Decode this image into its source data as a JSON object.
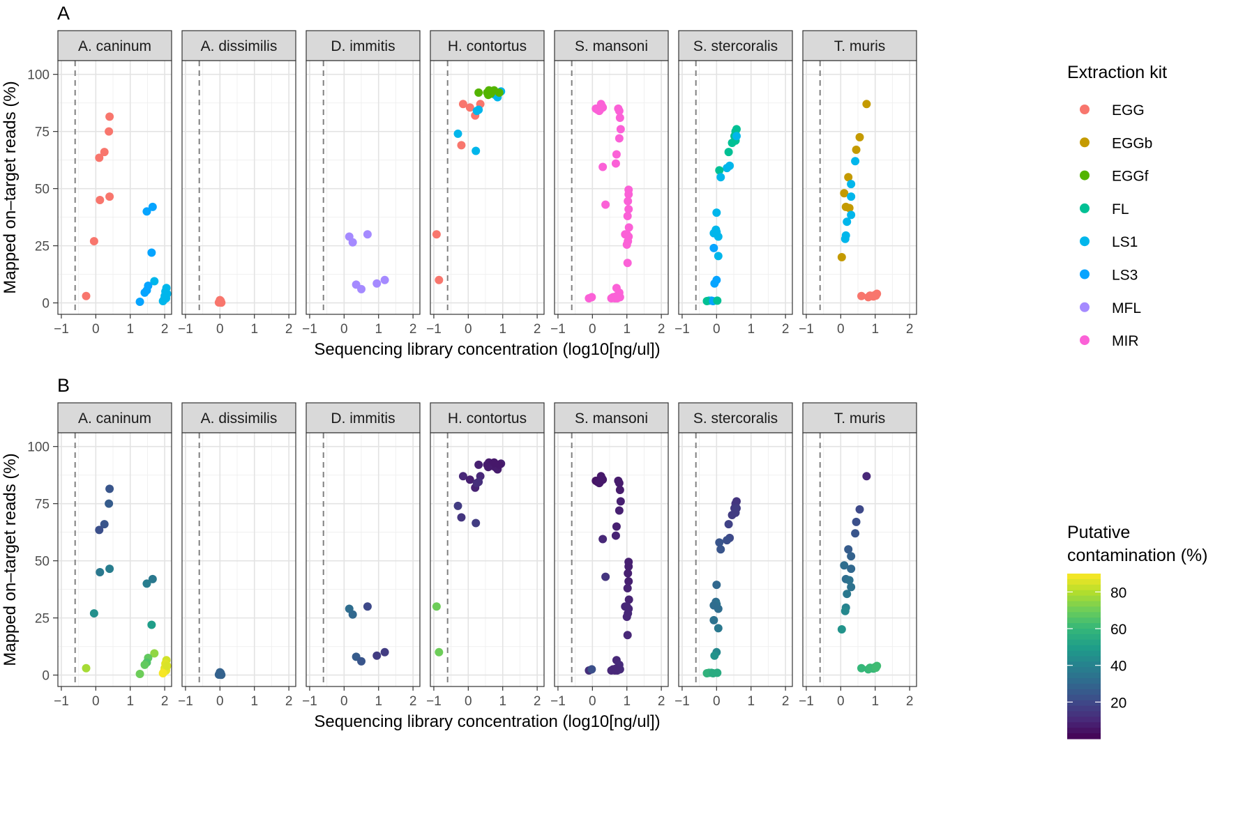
{
  "chart_data": [
    {
      "panel_label": "A",
      "type": "scatter",
      "facets": [
        "A. caninum",
        "A. dissimilis",
        "D. immitis",
        "H. contortus",
        "S. mansoni",
        "S. stercoralis",
        "T. muris"
      ],
      "xlabel": "Sequencing library concentration (log10[ng/ul])",
      "ylabel": "Mapped on–target reads (%)",
      "xlim": [
        -1.1,
        2.2
      ],
      "ylim": [
        -5,
        106
      ],
      "x_ticks": [
        -1,
        0,
        1,
        2
      ],
      "y_ticks": [
        0,
        25,
        50,
        75,
        100
      ],
      "x_tick_labels": [
        "−1",
        "0",
        "1",
        "2"
      ],
      "y_tick_labels": [
        "0",
        "25",
        "50",
        "75",
        "100"
      ],
      "threshold_x": -0.6,
      "color_by": "Extraction kit",
      "legend": {
        "title": "Extraction kit",
        "position": "right",
        "items": [
          {
            "label": "EGG",
            "color": "#F8766D"
          },
          {
            "label": "EGGb",
            "color": "#C49A00"
          },
          {
            "label": "EGGf",
            "color": "#53B400"
          },
          {
            "label": "FL",
            "color": "#00C094"
          },
          {
            "label": "LS1",
            "color": "#00B6EB"
          },
          {
            "label": "LS3",
            "color": "#06A4FF"
          },
          {
            "label": "MFL",
            "color": "#A58AFF"
          },
          {
            "label": "MIR",
            "color": "#FB61D7"
          }
        ]
      }
    },
    {
      "panel_label": "B",
      "type": "scatter",
      "facets": [
        "A. caninum",
        "A. dissimilis",
        "D. immitis",
        "H. contortus",
        "S. mansoni",
        "S. stercoralis",
        "T. muris"
      ],
      "xlabel": "Sequencing library concentration (log10[ng/ul])",
      "ylabel": "Mapped on–target reads (%)",
      "xlim": [
        -1.1,
        2.2
      ],
      "ylim": [
        -5,
        106
      ],
      "x_ticks": [
        -1,
        0,
        1,
        2
      ],
      "y_ticks": [
        0,
        25,
        50,
        75,
        100
      ],
      "x_tick_labels": [
        "−1",
        "0",
        "1",
        "2"
      ],
      "y_tick_labels": [
        "0",
        "25",
        "50",
        "75",
        "100"
      ],
      "threshold_x": -0.6,
      "color_by": "Putative contamination (%)",
      "colorbar": {
        "title_lines": [
          "Putative",
          "contamination (%)"
        ],
        "range": [
          0,
          90
        ],
        "ticks": [
          20,
          40,
          60,
          80
        ],
        "tick_labels": [
          "20",
          "40",
          "60",
          "80"
        ],
        "colormap": "viridis"
      }
    }
  ],
  "points": {
    "A. caninum": [
      [
        0.4,
        81.5,
        "EGG",
        24
      ],
      [
        0.38,
        75,
        "EGG",
        26
      ],
      [
        0.25,
        66,
        "EGG",
        24
      ],
      [
        0.1,
        63.5,
        "EGG",
        22
      ],
      [
        0.4,
        46.5,
        "EGG",
        38
      ],
      [
        0.12,
        45,
        "EGG",
        36
      ],
      [
        -0.05,
        27,
        "EGG",
        45
      ],
      [
        -0.28,
        3,
        "EGG",
        78
      ],
      [
        1.65,
        42,
        "LS3",
        36
      ],
      [
        1.48,
        40,
        "LS3",
        38
      ],
      [
        1.62,
        22,
        "LS3",
        50
      ],
      [
        1.7,
        9.5,
        "LS1",
        75
      ],
      [
        1.52,
        7.5,
        "LS3",
        68
      ],
      [
        1.48,
        5.5,
        "LS3",
        65
      ],
      [
        1.42,
        4.5,
        "LS3",
        68
      ],
      [
        1.28,
        0.5,
        "LS3",
        70
      ],
      [
        2.05,
        6.5,
        "LS1",
        84
      ],
      [
        2.02,
        5,
        "LS1",
        86
      ],
      [
        2.0,
        3,
        "LS1",
        86
      ],
      [
        1.98,
        1.5,
        "LS1",
        88
      ],
      [
        2.04,
        2,
        "LS1",
        87
      ],
      [
        2.07,
        4,
        "LS1",
        85
      ],
      [
        1.95,
        0.8,
        "LS1",
        89
      ]
    ],
    "A. dissimilis": [
      [
        0.0,
        0.5,
        "EGG",
        28
      ],
      [
        0.02,
        0.9,
        "EGG",
        28
      ],
      [
        -0.03,
        0.2,
        "EGG",
        28
      ],
      [
        0.04,
        0.1,
        "EGG",
        28
      ],
      [
        0.0,
        1.2,
        "EGG",
        28
      ]
    ],
    "D. immitis": [
      [
        0.15,
        29,
        "MFL",
        32
      ],
      [
        0.25,
        26.5,
        "MFL",
        30
      ],
      [
        0.68,
        30,
        "MFL",
        20
      ],
      [
        0.35,
        8,
        "MFL",
        26
      ],
      [
        0.5,
        6,
        "MFL",
        24
      ],
      [
        0.95,
        8.5,
        "MFL",
        16
      ],
      [
        1.18,
        10,
        "MFL",
        16
      ]
    ],
    "H. contortus": [
      [
        -0.15,
        87,
        "EGG",
        10
      ],
      [
        0.05,
        85.5,
        "EGG",
        8
      ],
      [
        0.35,
        87,
        "EGG",
        10
      ],
      [
        0.2,
        82,
        "EGG",
        9
      ],
      [
        -0.2,
        69,
        "EGG",
        14
      ],
      [
        -0.92,
        30,
        "EGG",
        70
      ],
      [
        -0.85,
        10,
        "EGG",
        70
      ],
      [
        0.3,
        84.5,
        "LS1",
        12
      ],
      [
        0.25,
        84,
        "LS1",
        12
      ],
      [
        -0.3,
        74,
        "LS1",
        16
      ],
      [
        0.22,
        66.5,
        "LS1",
        16
      ],
      [
        0.95,
        92.5,
        "LS1",
        8
      ],
      [
        0.85,
        90,
        "LS1",
        7
      ],
      [
        0.78,
        91,
        "LS1",
        7
      ],
      [
        0.3,
        92,
        "EGGf",
        8
      ],
      [
        0.55,
        92,
        "EGGf",
        7
      ],
      [
        0.6,
        93,
        "EGGf",
        7
      ],
      [
        0.65,
        91.5,
        "EGGf",
        7
      ],
      [
        0.7,
        92.5,
        "EGGf",
        6
      ],
      [
        0.58,
        91,
        "EGGf",
        7
      ],
      [
        0.9,
        92,
        "EGGf",
        6
      ],
      [
        0.75,
        93,
        "EGGf",
        6
      ]
    ],
    "S. mansoni": [
      [
        0.25,
        87,
        "MIR",
        6
      ],
      [
        0.28,
        86,
        "MIR",
        6
      ],
      [
        0.1,
        85,
        "MIR",
        5
      ],
      [
        0.15,
        84.5,
        "MIR",
        5
      ],
      [
        0.2,
        84,
        "MIR",
        6
      ],
      [
        0.3,
        85.5,
        "MIR",
        6
      ],
      [
        0.22,
        84.5,
        "MIR",
        6
      ],
      [
        0.75,
        85,
        "MIR",
        7
      ],
      [
        0.78,
        84,
        "MIR",
        7
      ],
      [
        0.8,
        81,
        "MIR",
        7
      ],
      [
        0.82,
        76,
        "MIR",
        8
      ],
      [
        0.78,
        72,
        "MIR",
        8
      ],
      [
        0.7,
        65,
        "MIR",
        8
      ],
      [
        0.68,
        61,
        "MIR",
        9
      ],
      [
        0.3,
        59.5,
        "MIR",
        10
      ],
      [
        0.38,
        43,
        "MIR",
        14
      ],
      [
        1.05,
        49.5,
        "MIR",
        8
      ],
      [
        1.05,
        47.5,
        "MIR",
        8
      ],
      [
        1.03,
        44.5,
        "MIR",
        8
      ],
      [
        1.05,
        41,
        "MIR",
        8
      ],
      [
        1.02,
        38,
        "MIR",
        9
      ],
      [
        1.06,
        33,
        "MIR",
        9
      ],
      [
        0.95,
        30,
        "MIR",
        10
      ],
      [
        1.0,
        30,
        "MIR",
        10
      ],
      [
        1.05,
        29,
        "MIR",
        10
      ],
      [
        1.03,
        27,
        "MIR",
        10
      ],
      [
        1.0,
        25.5,
        "MIR",
        10
      ],
      [
        1.02,
        17.5,
        "MIR",
        10
      ],
      [
        0.7,
        6.5,
        "MIR",
        10
      ],
      [
        0.78,
        4.5,
        "MIR",
        11
      ],
      [
        0.75,
        3,
        "MIR",
        11
      ],
      [
        0.6,
        2.5,
        "MIR",
        10
      ],
      [
        0.65,
        2,
        "MIR",
        10
      ],
      [
        0.72,
        2,
        "MIR",
        10
      ],
      [
        0.8,
        2.5,
        "MIR",
        11
      ],
      [
        0.55,
        2,
        "MIR",
        10
      ],
      [
        0.68,
        2.8,
        "MIR",
        10
      ],
      [
        -0.1,
        2,
        "MIR",
        12
      ],
      [
        -0.02,
        2.5,
        "MIR",
        22
      ]
    ],
    "S. stercoralis": [
      [
        0.58,
        76,
        "FL",
        14
      ],
      [
        0.55,
        75,
        "FL",
        14
      ],
      [
        0.52,
        73,
        "FL",
        15
      ],
      [
        0.55,
        71,
        "FL",
        16
      ],
      [
        0.45,
        70,
        "FL",
        16
      ],
      [
        0.35,
        66,
        "FL",
        18
      ],
      [
        0.38,
        60,
        "LS1",
        20
      ],
      [
        0.3,
        59,
        "LS1",
        22
      ],
      [
        0.08,
        58,
        "FL",
        24
      ],
      [
        0.12,
        55,
        "LS1",
        24
      ],
      [
        0.58,
        73,
        "LS1",
        16
      ],
      [
        0.0,
        39.5,
        "LS1",
        30
      ],
      [
        -0.02,
        32,
        "LS1",
        32
      ],
      [
        0.0,
        31,
        "LS1",
        34
      ],
      [
        -0.08,
        30.5,
        "LS1",
        32
      ],
      [
        0.05,
        29,
        "LS1",
        32
      ],
      [
        -0.08,
        24,
        "LS3",
        34
      ],
      [
        0.05,
        20.5,
        "LS1",
        36
      ],
      [
        0.0,
        10,
        "LS3",
        42
      ],
      [
        -0.06,
        8.5,
        "LS3",
        46
      ],
      [
        -0.15,
        1,
        "LS3",
        55
      ],
      [
        -0.22,
        1,
        "LS1",
        58
      ],
      [
        -0.28,
        0.8,
        "FL",
        58
      ],
      [
        -0.1,
        0.8,
        "LS3",
        55
      ],
      [
        0.02,
        1,
        "FL",
        55
      ]
    ],
    "T. muris": [
      [
        0.75,
        87,
        "EGGb",
        10
      ],
      [
        0.55,
        72.5,
        "EGGb",
        20
      ],
      [
        0.45,
        67,
        "EGGb",
        22
      ],
      [
        0.42,
        62,
        "LS1",
        24
      ],
      [
        0.22,
        55,
        "EGGb",
        26
      ],
      [
        0.3,
        52,
        "LS1",
        28
      ],
      [
        0.1,
        48,
        "EGGb",
        32
      ],
      [
        0.3,
        46.5,
        "LS1",
        30
      ],
      [
        0.15,
        42,
        "EGGb",
        32
      ],
      [
        0.25,
        41.5,
        "EGGb",
        34
      ],
      [
        0.3,
        38.5,
        "LS1",
        34
      ],
      [
        0.18,
        35.5,
        "LS1",
        36
      ],
      [
        0.15,
        29.5,
        "LS1",
        40
      ],
      [
        0.13,
        28,
        "LS1",
        42
      ],
      [
        0.03,
        20,
        "EGGb",
        46
      ],
      [
        0.6,
        3,
        "EGG",
        60
      ],
      [
        0.8,
        2.5,
        "EGG",
        60
      ],
      [
        0.9,
        3,
        "EGG",
        62
      ],
      [
        1.0,
        3.5,
        "EGG",
        62
      ],
      [
        1.05,
        4,
        "EGG",
        62
      ],
      [
        0.95,
        2.8,
        "EGG",
        60
      ],
      [
        0.85,
        3.2,
        "EGG",
        61
      ],
      [
        1.02,
        3.2,
        "EGG",
        62
      ]
    ]
  }
}
